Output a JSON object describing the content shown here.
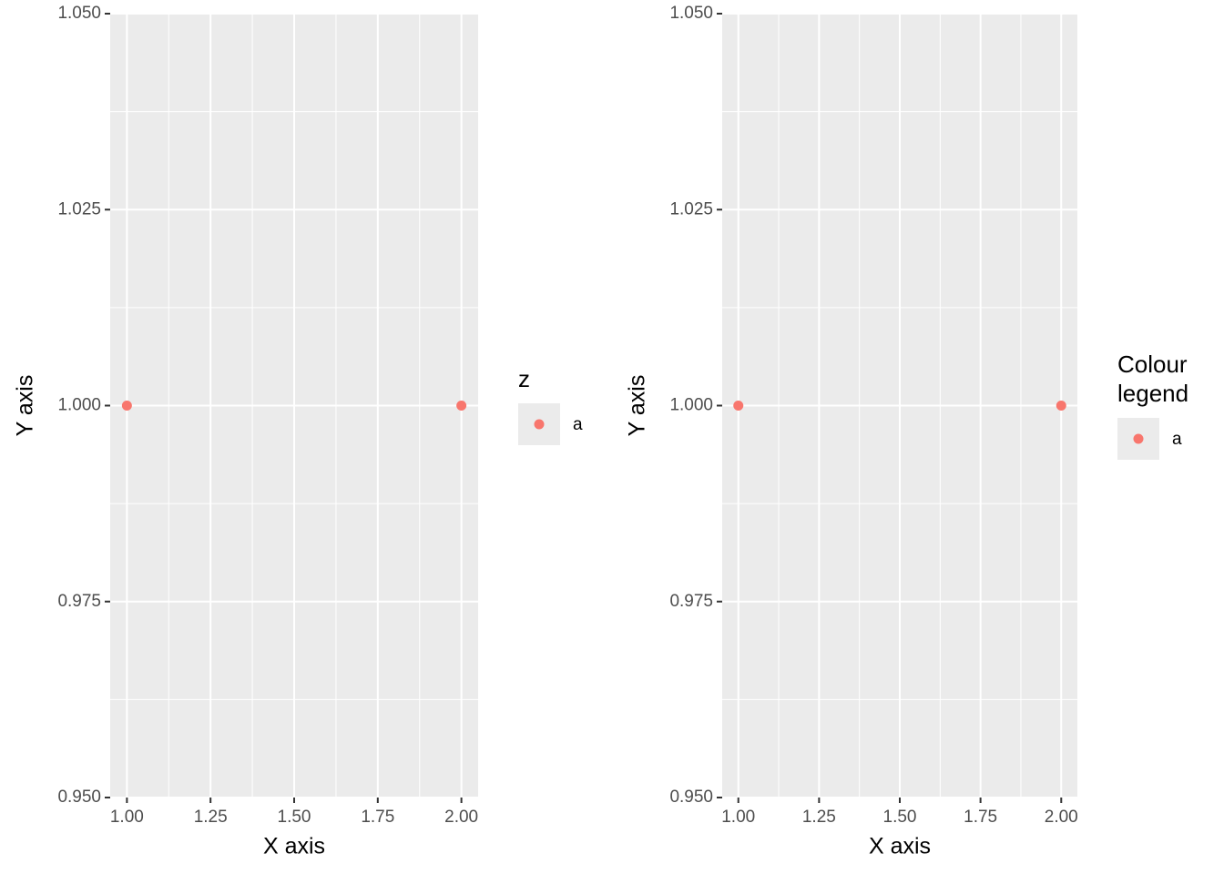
{
  "chart_data": [
    {
      "type": "scatter",
      "x_label": "X axis",
      "y_label": "Y axis",
      "xlim": [
        0.95,
        2.05
      ],
      "ylim": [
        0.95,
        1.05
      ],
      "xticks": [
        {
          "value": 1,
          "label": "1.00"
        },
        {
          "value": 1.25,
          "label": "1.25"
        },
        {
          "value": 1.5,
          "label": "1.50"
        },
        {
          "value": 1.75,
          "label": "1.75"
        },
        {
          "value": 2,
          "label": "2.00"
        }
      ],
      "yticks": [
        {
          "value": 0.95,
          "label": "0.950"
        },
        {
          "value": 0.975,
          "label": "0.975"
        },
        {
          "value": 1,
          "label": "1.000"
        },
        {
          "value": 1.025,
          "label": "1.025"
        },
        {
          "value": 1.05,
          "label": "1.050"
        }
      ],
      "grid": true,
      "legend_title": "z",
      "legend_position": "right",
      "series": [
        {
          "name": "a",
          "color": "#F8766D",
          "x": [
            1,
            2
          ],
          "values": [
            1,
            1
          ]
        }
      ]
    },
    {
      "type": "scatter",
      "x_label": "X axis",
      "y_label": "Y axis",
      "xlim": [
        0.95,
        2.05
      ],
      "ylim": [
        0.95,
        1.05
      ],
      "xticks": [
        {
          "value": 1,
          "label": "1.00"
        },
        {
          "value": 1.25,
          "label": "1.25"
        },
        {
          "value": 1.5,
          "label": "1.50"
        },
        {
          "value": 1.75,
          "label": "1.75"
        },
        {
          "value": 2,
          "label": "2.00"
        }
      ],
      "yticks": [
        {
          "value": 0.95,
          "label": "0.950"
        },
        {
          "value": 0.975,
          "label": "0.975"
        },
        {
          "value": 1,
          "label": "1.000"
        },
        {
          "value": 1.025,
          "label": "1.025"
        },
        {
          "value": 1.05,
          "label": "1.050"
        }
      ],
      "grid": true,
      "legend_title": "Colour legend",
      "legend_position": "right",
      "series": [
        {
          "name": "a",
          "color": "#F8766D",
          "x": [
            1,
            2
          ],
          "values": [
            1,
            1
          ]
        }
      ]
    }
  ]
}
